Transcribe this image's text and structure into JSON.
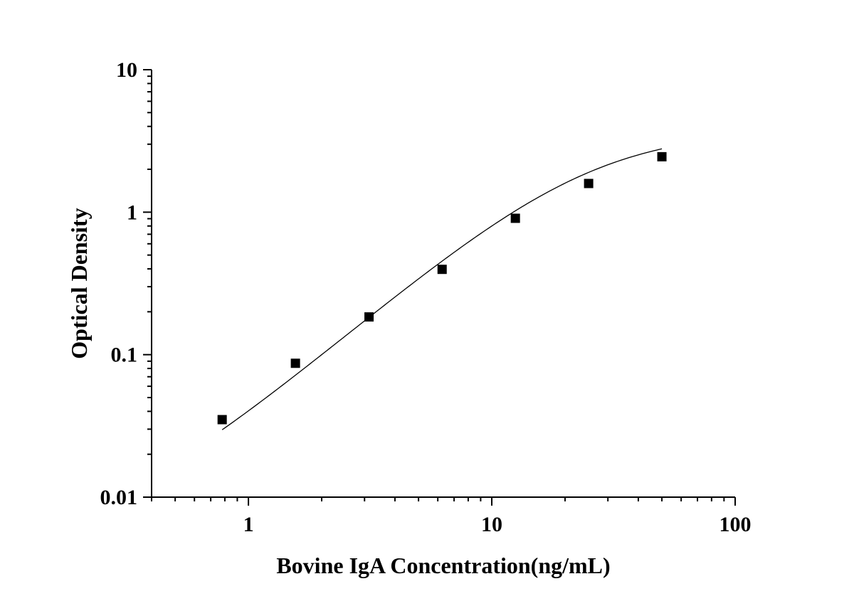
{
  "chart_data": {
    "type": "scatter",
    "title": "",
    "xlabel": "Bovine IgA Concentration(ng/mL)",
    "ylabel": "Optical Density",
    "x_scale": "log",
    "y_scale": "log",
    "xlim": [
      0.4,
      100
    ],
    "ylim": [
      0.01,
      10
    ],
    "x_major_ticks": [
      {
        "value": 1,
        "label": "1"
      },
      {
        "value": 10,
        "label": "10"
      },
      {
        "value": 100,
        "label": "100"
      }
    ],
    "y_major_ticks": [
      {
        "value": 0.01,
        "label": "0.01"
      },
      {
        "value": 0.1,
        "label": "0.1"
      },
      {
        "value": 1,
        "label": "1"
      },
      {
        "value": 10,
        "label": "10"
      }
    ],
    "grid": false,
    "legend": "none",
    "marker_color": "#000000",
    "line_color": "#000000",
    "series": [
      {
        "marker": "square",
        "x": [
          0.78,
          1.56,
          3.13,
          6.25,
          12.5,
          25,
          50
        ],
        "y": [
          0.035,
          0.087,
          0.184,
          0.397,
          0.906,
          1.59,
          2.45
        ]
      }
    ],
    "fit_curve": {
      "type": "four-parameter logistic",
      "A": 0.005,
      "B": 1.45,
      "C": 25,
      "D": 3.8
    }
  }
}
